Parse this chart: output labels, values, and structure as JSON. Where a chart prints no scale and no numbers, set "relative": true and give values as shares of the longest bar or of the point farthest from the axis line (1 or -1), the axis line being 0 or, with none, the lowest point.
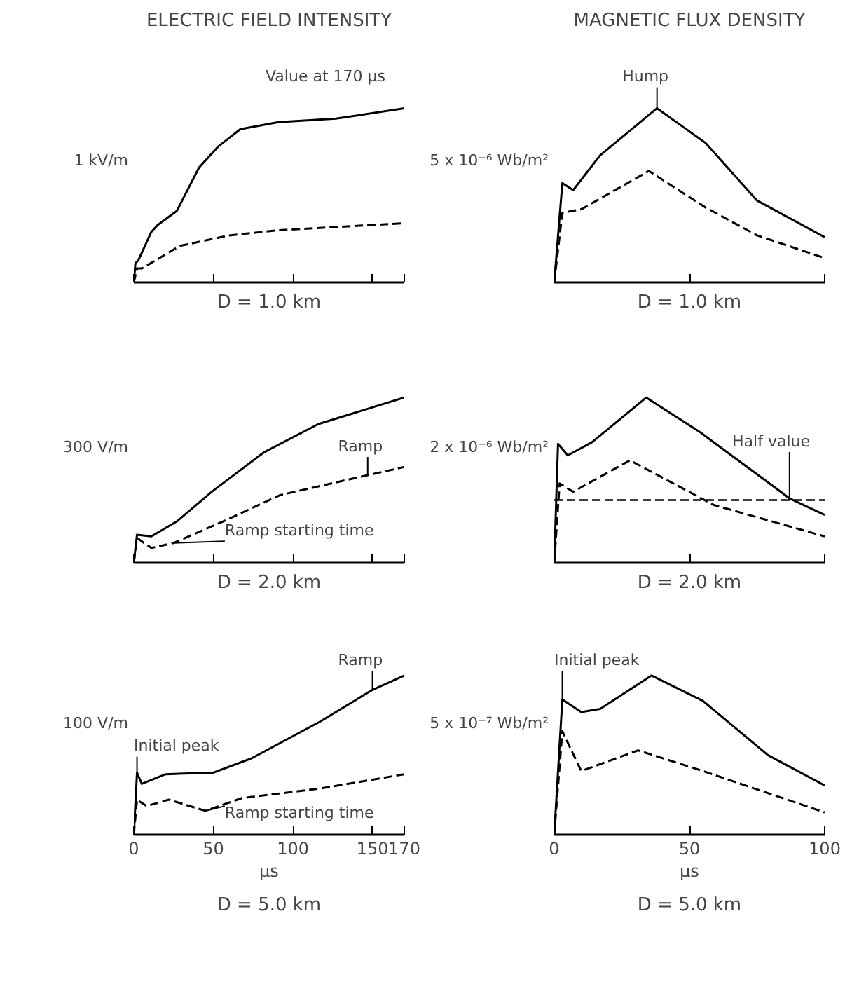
{
  "chart_data": [
    {
      "type": "line",
      "relative": true,
      "title": "ELECTRIC FIELD INTENSITY",
      "subtitle": "D = 1.0 km",
      "xlim": [
        0,
        170
      ],
      "xticks": [
        0,
        50,
        100,
        150,
        170
      ],
      "tick_labels": false,
      "series": [
        {
          "color": "#000000",
          "line_style": "solid",
          "x": [
            0,
            1,
            3,
            11,
            15,
            27,
            41,
            53,
            67,
            91,
            127,
            170
          ],
          "values": [
            0,
            0.11,
            0.13,
            0.29,
            0.33,
            0.41,
            0.66,
            0.78,
            0.88,
            0.92,
            0.94,
            1.0
          ]
        },
        {
          "color": "#000000",
          "line_style": "dashed",
          "x": [
            0,
            2,
            5,
            29,
            60,
            91,
            170
          ],
          "values": [
            0,
            0.08,
            0.08,
            0.21,
            0.27,
            0.3,
            0.34
          ]
        }
      ],
      "annotations": [
        "1 kV/m",
        {
          "text": "Value at 170 µs",
          "x": 170,
          "y": 1.0
        }
      ]
    },
    {
      "type": "line",
      "relative": true,
      "title": "MAGNETIC FLUX DENSITY",
      "subtitle": "D = 1.0 km",
      "xlim": [
        0,
        100
      ],
      "xticks": [
        0,
        50,
        100
      ],
      "tick_labels": false,
      "series": [
        {
          "color": "#000000",
          "line_style": "solid",
          "x": [
            0,
            3,
            7,
            17,
            38,
            56,
            75,
            100
          ],
          "values": [
            0,
            0.57,
            0.53,
            0.73,
            1.0,
            0.8,
            0.47,
            0.26
          ]
        },
        {
          "color": "#000000",
          "line_style": "dashed",
          "x": [
            0,
            3,
            10,
            35,
            56,
            75,
            100
          ],
          "values": [
            0,
            0.4,
            0.42,
            0.64,
            0.43,
            0.27,
            0.14
          ]
        }
      ],
      "annotations": [
        "5 x 10⁻⁶ Wb/m²",
        {
          "text": "Hump",
          "x": 38,
          "y": 1.0
        }
      ]
    },
    {
      "type": "line",
      "relative": true,
      "subtitle": "D = 2.0 km",
      "xlim": [
        0,
        170
      ],
      "xticks": [
        0,
        50,
        100,
        150,
        170
      ],
      "tick_labels": false,
      "series": [
        {
          "color": "#000000",
          "line_style": "solid",
          "x": [
            0,
            2,
            11,
            27,
            49,
            82,
            116,
            170
          ],
          "values": [
            0,
            0.17,
            0.16,
            0.25,
            0.43,
            0.67,
            0.84,
            1.0
          ]
        },
        {
          "color": "#000000",
          "line_style": "dashed",
          "x": [
            0,
            2,
            11,
            25,
            56,
            92,
            147,
            170
          ],
          "values": [
            0,
            0.15,
            0.09,
            0.12,
            0.25,
            0.41,
            0.53,
            0.58
          ]
        }
      ],
      "annotations": [
        "300 V/m",
        {
          "text": "Ramp starting time",
          "x": 25,
          "y": 0.12
        },
        {
          "text": "Ramp",
          "x": 147,
          "y": 0.53
        }
      ]
    },
    {
      "type": "line",
      "relative": true,
      "subtitle": "D = 2.0 km",
      "xlim": [
        0,
        100
      ],
      "xticks": [
        0,
        50,
        100
      ],
      "tick_labels": false,
      "series": [
        {
          "color": "#000000",
          "line_style": "solid",
          "x": [
            0,
            1.4,
            5,
            14,
            34,
            54,
            87,
            100
          ],
          "values": [
            0,
            0.72,
            0.65,
            0.73,
            1.0,
            0.79,
            0.39,
            0.29
          ]
        },
        {
          "color": "#000000",
          "line_style": "dashed",
          "x": [
            0,
            2,
            7,
            28,
            59,
            100
          ],
          "values": [
            0,
            0.48,
            0.43,
            0.62,
            0.35,
            0.16
          ]
        }
      ],
      "ref_lines": [
        {
          "axis": "y",
          "value": 0.38,
          "line_style": "dashed",
          "color": "#000000"
        }
      ],
      "annotations": [
        "2 x 10⁻⁶ Wb/m²",
        {
          "text": "Half value",
          "x": 87,
          "y": 0.38
        }
      ]
    },
    {
      "type": "line",
      "relative": true,
      "subtitle": "D = 5.0 km",
      "xlabel": "µs",
      "xlim": [
        0,
        170
      ],
      "xticks": [
        0,
        50,
        100,
        150,
        170
      ],
      "series": [
        {
          "color": "#000000",
          "line_style": "solid",
          "x": [
            0,
            2,
            5,
            20,
            50,
            74,
            117,
            150,
            170
          ],
          "values": [
            0,
            0.39,
            0.32,
            0.38,
            0.39,
            0.48,
            0.71,
            0.91,
            1.0
          ]
        },
        {
          "color": "#000000",
          "line_style": "dashed",
          "x": [
            0,
            2,
            8,
            22,
            45,
            68,
            117,
            170
          ],
          "values": [
            0,
            0.22,
            0.18,
            0.22,
            0.15,
            0.23,
            0.29,
            0.38
          ]
        }
      ],
      "annotations": [
        "100 V/m",
        {
          "text": "Initial peak",
          "x": 2,
          "y": 0.39
        },
        {
          "text": "Ramp starting time",
          "x": 45,
          "y": 0.15
        },
        {
          "text": "Ramp",
          "x": 150,
          "y": 0.91
        }
      ]
    },
    {
      "type": "line",
      "relative": true,
      "subtitle": "D = 5.0 km",
      "xlabel": "µs",
      "xlim": [
        0,
        100
      ],
      "xticks": [
        0,
        50,
        100
      ],
      "series": [
        {
          "color": "#000000",
          "line_style": "solid",
          "x": [
            0,
            3,
            10,
            17,
            36,
            55,
            79,
            100
          ],
          "values": [
            0,
            0.85,
            0.77,
            0.79,
            1.0,
            0.84,
            0.5,
            0.31
          ]
        },
        {
          "color": "#000000",
          "line_style": "dashed",
          "x": [
            0,
            3,
            10,
            31,
            55,
            100
          ],
          "values": [
            0,
            0.65,
            0.4,
            0.53,
            0.4,
            0.14
          ]
        }
      ],
      "annotations": [
        "5 x 10⁻⁷ Wb/m²",
        {
          "text": "Initial peak",
          "x": 3,
          "y": 0.85
        }
      ]
    }
  ]
}
